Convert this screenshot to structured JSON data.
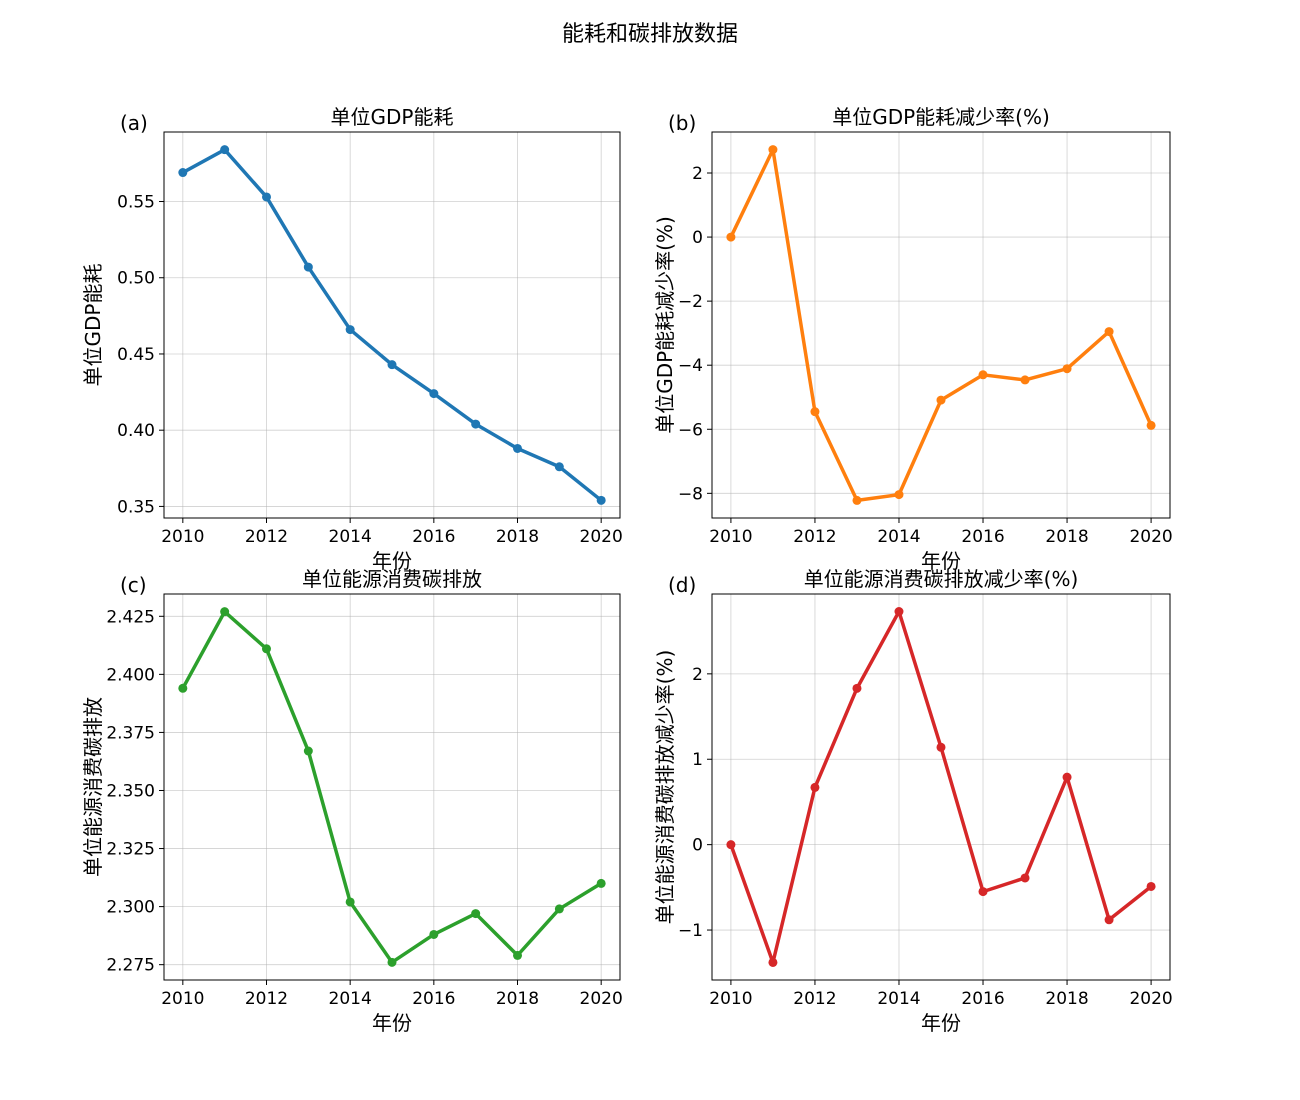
{
  "figure": {
    "suptitle": "能耗和碳排放数据"
  },
  "chart_data": [
    {
      "type": "line",
      "panel_label": "(a)",
      "title": "单位GDP能耗",
      "xlabel": "年份",
      "ylabel": "单位GDP能耗",
      "color": "#1f77b4",
      "x": [
        2010,
        2011,
        2012,
        2013,
        2014,
        2015,
        2016,
        2017,
        2018,
        2019,
        2020
      ],
      "values": [
        0.569,
        0.584,
        0.553,
        0.507,
        0.466,
        0.443,
        0.424,
        0.404,
        0.388,
        0.376,
        0.354
      ],
      "xlim": [
        2009.55,
        2020.45
      ],
      "ylim": [
        0.3424,
        0.5956
      ],
      "xticks": [
        2010,
        2012,
        2014,
        2016,
        2018,
        2020
      ],
      "xtick_labels": [
        "2010",
        "2012",
        "2014",
        "2016",
        "2018",
        "2020"
      ],
      "yticks": [
        0.35,
        0.4,
        0.45,
        0.5,
        0.55
      ],
      "ytick_labels": [
        "0.35",
        "0.40",
        "0.45",
        "0.50",
        "0.55"
      ],
      "grid": true
    },
    {
      "type": "line",
      "panel_label": "(b)",
      "title": "单位GDP能耗减少率(%)",
      "xlabel": "年份",
      "ylabel": "单位GDP能耗减少率(%)",
      "color": "#ff7f0e",
      "x": [
        2010,
        2011,
        2012,
        2013,
        2014,
        2015,
        2016,
        2017,
        2018,
        2019,
        2020
      ],
      "values": [
        0.0,
        2.73,
        -5.45,
        -8.22,
        -8.04,
        -5.09,
        -4.3,
        -4.46,
        -4.11,
        -2.95,
        -5.88
      ],
      "xlim": [
        2009.55,
        2020.45
      ],
      "ylim": [
        -8.77,
        3.28
      ],
      "xticks": [
        2010,
        2012,
        2014,
        2016,
        2018,
        2020
      ],
      "xtick_labels": [
        "2010",
        "2012",
        "2014",
        "2016",
        "2018",
        "2020"
      ],
      "yticks": [
        -8,
        -6,
        -4,
        -2,
        0,
        2
      ],
      "ytick_labels": [
        "−8",
        "−6",
        "−4",
        "−2",
        "0",
        "2"
      ],
      "grid": true
    },
    {
      "type": "line",
      "panel_label": "(c)",
      "title": "单位能源消费碳排放",
      "xlabel": "年份",
      "ylabel": "单位能源消费碳排放",
      "color": "#2ca02c",
      "x": [
        2010,
        2011,
        2012,
        2013,
        2014,
        2015,
        2016,
        2017,
        2018,
        2019,
        2020
      ],
      "values": [
        2.394,
        2.427,
        2.411,
        2.367,
        2.302,
        2.276,
        2.288,
        2.297,
        2.279,
        2.299,
        2.31
      ],
      "xlim": [
        2009.55,
        2020.45
      ],
      "ylim": [
        2.2684,
        2.4346
      ],
      "xticks": [
        2010,
        2012,
        2014,
        2016,
        2018,
        2020
      ],
      "xtick_labels": [
        "2010",
        "2012",
        "2014",
        "2016",
        "2018",
        "2020"
      ],
      "yticks": [
        2.275,
        2.3,
        2.325,
        2.35,
        2.375,
        2.4,
        2.425
      ],
      "ytick_labels": [
        "2.275",
        "2.300",
        "2.325",
        "2.350",
        "2.375",
        "2.400",
        "2.425"
      ],
      "grid": true
    },
    {
      "type": "line",
      "panel_label": "(d)",
      "title": "单位能源消费碳排放减少率(%)",
      "xlabel": "年份",
      "ylabel": "单位能源消费碳排放减少率(%)",
      "color": "#d62728",
      "x": [
        2010,
        2011,
        2012,
        2013,
        2014,
        2015,
        2016,
        2017,
        2018,
        2019,
        2020
      ],
      "values": [
        0.0,
        -1.38,
        0.67,
        1.83,
        2.73,
        1.14,
        -0.55,
        -0.39,
        0.79,
        -0.88,
        -0.49
      ],
      "xlim": [
        2009.55,
        2020.45
      ],
      "ylim": [
        -1.585,
        2.935
      ],
      "xticks": [
        2010,
        2012,
        2014,
        2016,
        2018,
        2020
      ],
      "xtick_labels": [
        "2010",
        "2012",
        "2014",
        "2016",
        "2018",
        "2020"
      ],
      "yticks": [
        -1,
        0,
        1,
        2
      ],
      "ytick_labels": [
        "−1",
        "0",
        "1",
        "2"
      ],
      "grid": true
    }
  ]
}
